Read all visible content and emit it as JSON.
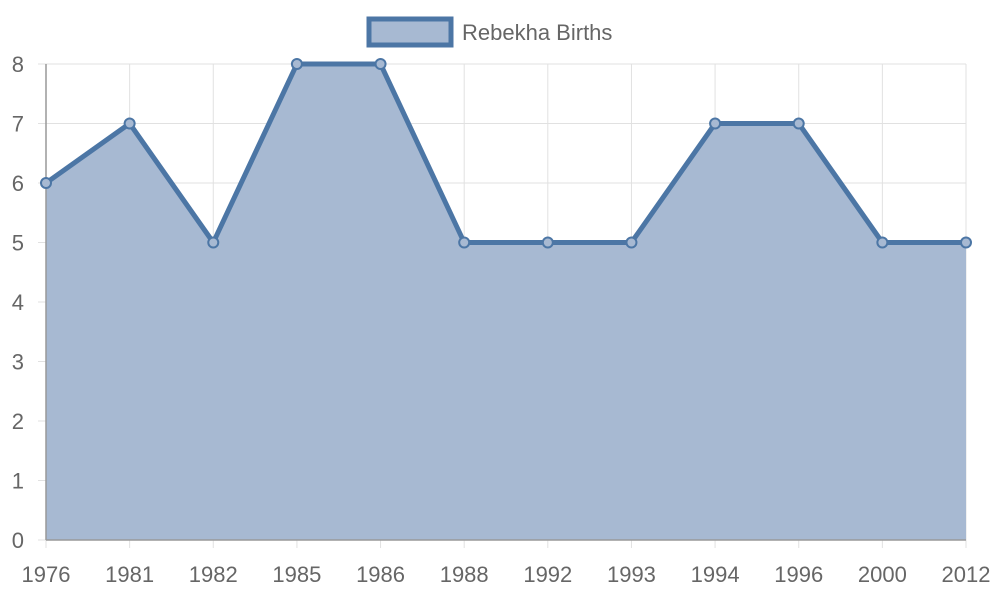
{
  "chart_data": {
    "type": "area",
    "categories": [
      "1976",
      "1981",
      "1982",
      "1985",
      "1986",
      "1988",
      "1992",
      "1993",
      "1994",
      "1996",
      "2000",
      "2012"
    ],
    "series": [
      {
        "name": "Rebekha Births",
        "values": [
          6,
          7,
          5,
          8,
          8,
          5,
          5,
          5,
          7,
          7,
          5,
          5
        ]
      }
    ],
    "title": "",
    "xlabel": "",
    "ylabel": "",
    "ylim": [
      0,
      8
    ],
    "yticks": [
      0,
      1,
      2,
      3,
      4,
      5,
      6,
      7,
      8
    ],
    "grid": true,
    "legend_position": "top-center",
    "colors": {
      "line": "#4c76a5",
      "fill": "#a7b9d2",
      "grid": "#e1e1e1",
      "axis": "#999999",
      "text": "#666666"
    }
  }
}
